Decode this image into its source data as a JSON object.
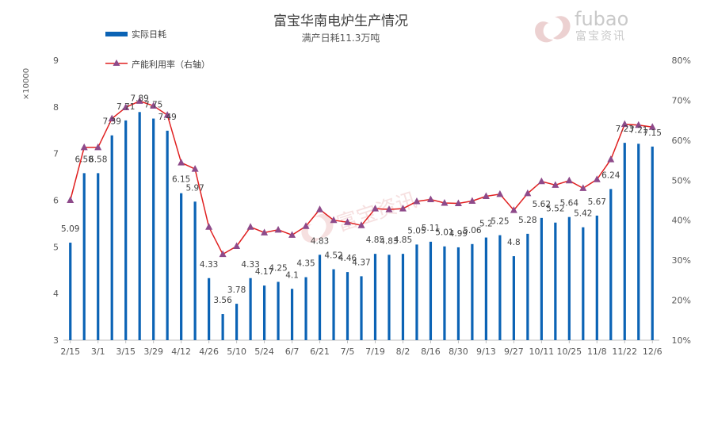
{
  "chart_data": {
    "type": "bar",
    "title": "富宝华南电炉生产情况",
    "subtitle": "满产日耗11.3万吨",
    "watermark_brand": "fubao",
    "watermark_cn": "富宝资讯",
    "y_multiplier_label": "×10000",
    "legend_position": "top-left",
    "grid": false,
    "x_tick_labels": [
      "2/15",
      "3/1",
      "3/15",
      "3/29",
      "4/12",
      "4/26",
      "5/10",
      "5/24",
      "6/7",
      "6/21",
      "7/5",
      "7/19",
      "8/2",
      "8/16",
      "8/30",
      "9/13",
      "9/27",
      "10/11",
      "10/25",
      "11/8",
      "11/22",
      "12/6"
    ],
    "ylim_left": [
      3,
      9
    ],
    "left_ticks": [
      3,
      4,
      5,
      6,
      7,
      8,
      9
    ],
    "ylim_right": [
      10,
      80
    ],
    "right_ticks": [
      "10%",
      "20%",
      "30%",
      "40%",
      "50%",
      "60%",
      "70%",
      "80%"
    ],
    "series": [
      {
        "name": "实际日耗",
        "kind": "bar",
        "axis": "left",
        "color": "#0b63b5",
        "values": [
          5.09,
          6.58,
          6.58,
          7.39,
          7.71,
          7.89,
          7.75,
          7.49,
          6.15,
          5.97,
          4.33,
          3.56,
          3.78,
          4.33,
          4.17,
          4.25,
          4.1,
          4.35,
          4.83,
          4.52,
          4.46,
          4.37,
          4.85,
          4.83,
          4.85,
          5.05,
          5.11,
          5.01,
          4.99,
          5.06,
          5.2,
          5.25,
          4.8,
          5.28,
          5.62,
          5.52,
          5.64,
          5.42,
          5.67,
          6.24,
          7.23,
          7.21,
          7.15
        ],
        "labels": [
          "5.09",
          "6.58",
          "6.58",
          "7.39",
          "7.71",
          "7.89",
          "7.75",
          "7.49",
          "6.15",
          "5.97",
          "4.33",
          "3.56",
          "3.78",
          "4.33",
          "4.17",
          "4.25",
          "4.1",
          "4.35",
          "4.83",
          "4.52",
          "4.46",
          "4.37",
          "4.85",
          "4.83",
          "4.85",
          "5.05",
          "5.11",
          "5.01",
          "4.99",
          "5.06",
          "5.2",
          "5.25",
          "4.8",
          "5.28",
          "5.62",
          "5.52",
          "5.64",
          "5.42",
          "5.67",
          "6.24",
          "7.23",
          "7.21",
          "7.15"
        ]
      },
      {
        "name": "产能利用率（右轴）",
        "kind": "line",
        "axis": "right",
        "color": "#e02020",
        "marker_color": "#8e4a8a",
        "values": [
          45.0,
          58.2,
          58.2,
          65.4,
          68.2,
          69.8,
          68.6,
          66.3,
          54.4,
          52.8,
          38.3,
          31.5,
          33.5,
          38.3,
          36.9,
          37.6,
          36.3,
          38.5,
          42.7,
          40.0,
          39.5,
          38.7,
          42.9,
          42.7,
          42.9,
          44.7,
          45.2,
          44.3,
          44.2,
          44.8,
          46.0,
          46.5,
          42.5,
          46.7,
          49.7,
          48.8,
          49.9,
          48.0,
          50.2,
          55.2,
          64.0,
          63.8,
          63.3
        ]
      }
    ]
  }
}
